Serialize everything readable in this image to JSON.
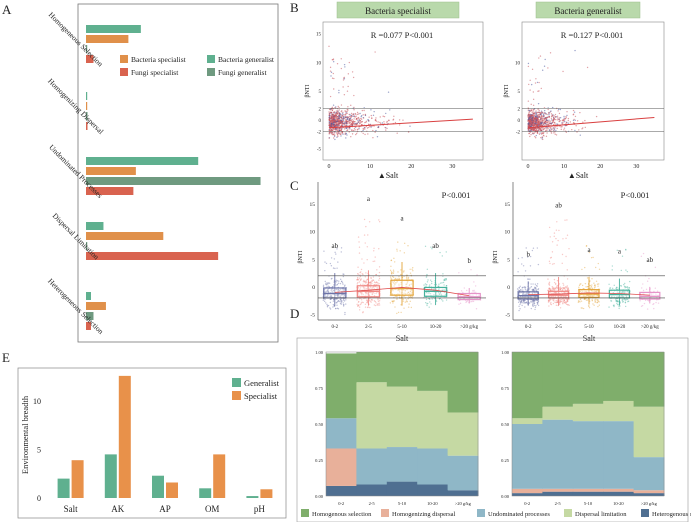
{
  "colors": {
    "bact_spec": "#e0904a",
    "bact_gen": "#5fb08f",
    "fungi_spec": "#d9634f",
    "fungi_gen": "#6f9a80",
    "generalist": "#5fb08f",
    "specialist": "#e8914a",
    "homog_sel": "#7fae6b",
    "homog_disp": "#e8b09a",
    "undom": "#8fb7c7",
    "disp_lim": "#c5d9a3",
    "hetero_sel": "#4f6f91",
    "strip_bg": "#b9d9ab",
    "grp0": "#6d74a8",
    "grp1": "#ef8783",
    "grp2": "#e3a53a",
    "grp3": "#45b19c",
    "grp4": "#e694c9",
    "scatter": "#c9535c",
    "scatter2": "#4b5aa0"
  },
  "panel_letters": [
    "A",
    "B",
    "C",
    "D",
    "E"
  ],
  "chart_data": [
    {
      "id": "A",
      "type": "bar",
      "orientation": "horizontal",
      "categories": [
        "Homogeneous Selection",
        "Homogenizing Dispersal",
        "Undominated Processes",
        "Dispersal Limitation",
        "Heterogeneous Selection"
      ],
      "series": [
        {
          "name": "Bacteria generalist",
          "values": [
            22,
            0.3,
            45,
            7,
            2
          ]
        },
        {
          "name": "Bacteria specialist",
          "values": [
            17,
            0.3,
            20,
            31,
            8
          ]
        },
        {
          "name": "Fungi generalist",
          "values": [
            0.3,
            0.6,
            70,
            0.5,
            3
          ]
        },
        {
          "name": "Fungi specialist",
          "values": [
            3,
            0.6,
            19,
            53,
            2
          ]
        }
      ],
      "legend": [
        "Bacteria specialist",
        "Bacteria generalist",
        "Fungi specialist",
        "Fungi generalist"
      ],
      "xlim": [
        0,
        75
      ]
    },
    {
      "id": "B",
      "type": "scatter",
      "panels": [
        {
          "strip": "Bacteria specialist",
          "stat": "R =0.077   P<0.001"
        },
        {
          "strip": "Bacteria generalist",
          "stat": "R =0.127   P<0.001"
        }
      ],
      "ylabel": "βNTI",
      "xlabel": "▲Salt",
      "xticks": [
        "0",
        "10",
        "20",
        "30"
      ],
      "yticks_left": [
        "15",
        "10",
        "5",
        "2",
        "0",
        "-2",
        "-5"
      ],
      "yticks_right": [
        "10",
        "5",
        "2",
        "0",
        "-2"
      ],
      "hlines": [
        2,
        -2
      ]
    },
    {
      "id": "C",
      "type": "box",
      "categories": [
        "0-2",
        "2-5",
        "5-10",
        "10-20",
        ">20 g/kg"
      ],
      "ylabel": "βNTI",
      "xlabel": "Salt",
      "yticks": [
        "15",
        "10",
        "5",
        "0",
        "-5"
      ],
      "panels": [
        {
          "stat": "P<0.001",
          "letters": [
            "ab",
            "a",
            "a",
            "ab",
            "b"
          ],
          "boxes": [
            {
              "q1": -2,
              "med": -1.2,
              "q3": -0.2,
              "lo": -3.5,
              "hi": 2.5
            },
            {
              "q1": -1.8,
              "med": -0.8,
              "q3": 0.2,
              "lo": -3.4,
              "hi": 3
            },
            {
              "q1": -1.5,
              "med": -0.3,
              "q3": 1.2,
              "lo": -3.4,
              "hi": 4.5
            },
            {
              "q1": -1.7,
              "med": -0.8,
              "q3": -0.1,
              "lo": -3.3,
              "hi": 2.5
            },
            {
              "q1": -2.3,
              "med": -1.8,
              "q3": -1.2,
              "lo": -3,
              "hi": -0.2
            }
          ]
        },
        {
          "stat": "P<0.001",
          "letters": [
            "b",
            "ab",
            "a",
            "a",
            "ab"
          ],
          "boxes": [
            {
              "q1": -2.2,
              "med": -1.6,
              "q3": -0.9,
              "lo": -3.4,
              "hi": 1
            },
            {
              "q1": -2,
              "med": -1.5,
              "q3": -0.8,
              "lo": -3.4,
              "hi": 1.8
            },
            {
              "q1": -1.9,
              "med": -1.3,
              "q3": -0.5,
              "lo": -3.2,
              "hi": 1.8
            },
            {
              "q1": -2,
              "med": -1.4,
              "q3": -0.6,
              "lo": -3.3,
              "hi": 1.5
            },
            {
              "q1": -2.2,
              "med": -1.7,
              "q3": -1,
              "lo": -3,
              "hi": 0
            }
          ]
        }
      ],
      "hlines": [
        2,
        -2
      ]
    },
    {
      "id": "D",
      "type": "area",
      "stacked": true,
      "categories": [
        "0-2",
        "2-5",
        "5-10",
        "10-20",
        ">20 g/kg"
      ],
      "yticks": [
        "1.00",
        "0.75",
        "0.50",
        "0.25",
        "0.00"
      ],
      "legend": [
        "Homogenous selection",
        "Homogenizing dispersal",
        "Undominated processes",
        "Dispersal limitation",
        "Heterogenous selection"
      ],
      "panels": [
        {
          "hetero_sel": [
            0.07,
            0.08,
            0.1,
            0.08,
            0.04
          ],
          "homog_disp": [
            0.26,
            0,
            0,
            0,
            0
          ],
          "undom": [
            0.21,
            0.25,
            0.24,
            0.25,
            0.24
          ],
          "disp_lim": [
            0,
            0.46,
            0.42,
            0.4,
            0.3
          ],
          "homog_sel": [
            0.45,
            0.21,
            0.24,
            0.27,
            0.42
          ]
        },
        {
          "hetero_sel": [
            0.02,
            0.03,
            0.03,
            0.03,
            0.02
          ],
          "homog_disp": [
            0.03,
            0.02,
            0.02,
            0.02,
            0.02
          ],
          "undom": [
            0.45,
            0.48,
            0.47,
            0.47,
            0.23
          ],
          "disp_lim": [
            0.04,
            0.09,
            0.12,
            0.14,
            0.35
          ],
          "homog_sel": [
            0.46,
            0.38,
            0.36,
            0.34,
            0.38
          ]
        }
      ]
    },
    {
      "id": "E",
      "type": "bar",
      "categories": [
        "Salt",
        "AK",
        "AP",
        "OM",
        "pH"
      ],
      "series": [
        {
          "name": "Generalist",
          "values": [
            2,
            4.5,
            2.3,
            1,
            0.2
          ]
        },
        {
          "name": "Specialist",
          "values": [
            3.9,
            12.6,
            1.6,
            4.5,
            0.9
          ]
        }
      ],
      "ylabel": "Environmental breadth",
      "yticks": [
        "0",
        "5",
        "10"
      ],
      "ylim": [
        0,
        13
      ]
    }
  ]
}
